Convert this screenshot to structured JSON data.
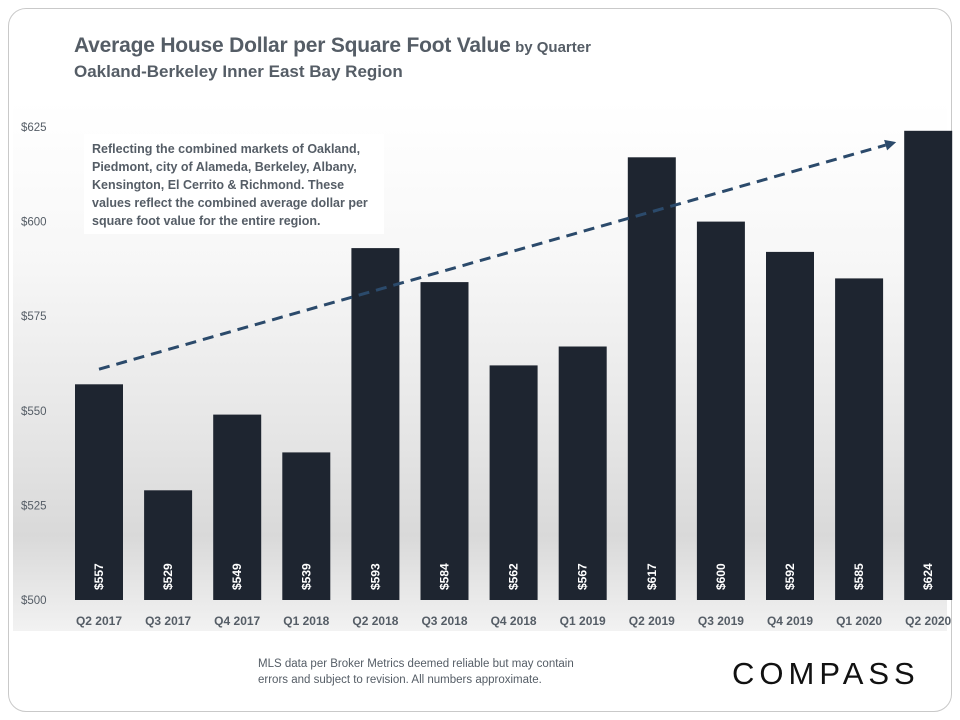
{
  "header": {
    "title": "Average House Dollar per Square Foot Value",
    "title_suffix": "by Quarter",
    "subtitle": "Oakland-Berkeley  Inner East Bay Region"
  },
  "annotation": {
    "text": "Reflecting the combined markets of Oakland, Piedmont, city of Alameda, Berkeley, Albany, Kensington, El Cerrito & Richmond. These values reflect the combined average dollar per square foot value for the entire region."
  },
  "footer": {
    "note_line1": "MLS data per Broker Metrics  deemed reliable but may contain",
    "note_line2": "errors and subject to revision. All numbers approximate.",
    "logo": "COMPASS"
  },
  "colors": {
    "bar": "#1e2530",
    "bar_label": "#ffffff",
    "text": "#555d66",
    "trend": "#2b4a6b"
  },
  "chart_data": {
    "type": "bar",
    "categories": [
      "Q2 2017",
      "Q3 2017",
      "Q4 2017",
      "Q1 2018",
      "Q2 2018",
      "Q3 2018",
      "Q4 2018",
      "Q1 2019",
      "Q2 2019",
      "Q3 2019",
      "Q4 2019",
      "Q1 2020",
      "Q2 2020"
    ],
    "values": [
      557,
      529,
      549,
      539,
      593,
      584,
      562,
      567,
      617,
      600,
      592,
      585,
      624
    ],
    "value_labels": [
      "$557",
      "$529",
      "$549",
      "$539",
      "$593",
      "$584",
      "$562",
      "$567",
      "$617",
      "$600",
      "$592",
      "$585",
      "$624"
    ],
    "ylim": [
      500,
      625
    ],
    "yticks": [
      500,
      525,
      550,
      575,
      600,
      625
    ],
    "ytick_labels": [
      "$500",
      "$525",
      "$550",
      "$575",
      "$600",
      "$625"
    ],
    "grid": false,
    "trend_line": {
      "style": "dashed-arrow",
      "start": [
        "Q2 2017",
        561
      ],
      "end": [
        "Q2 2020",
        621
      ]
    }
  }
}
